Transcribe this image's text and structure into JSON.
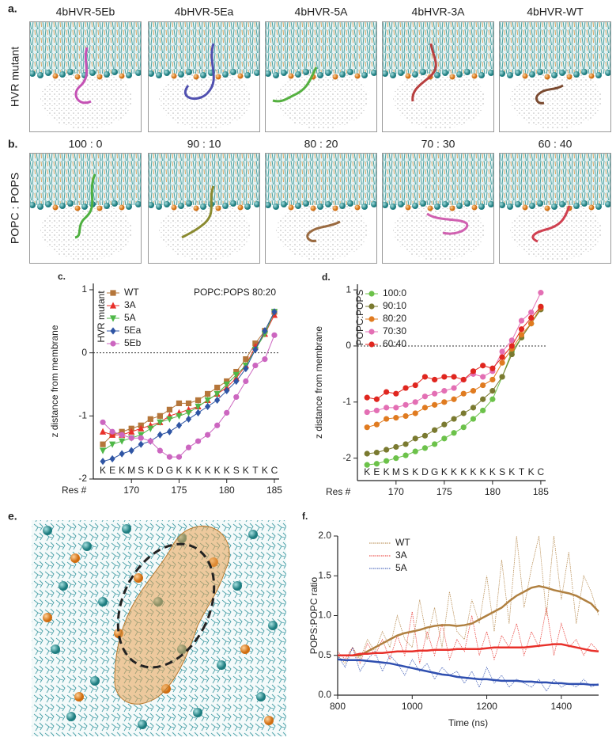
{
  "figure": {
    "panel_a": "a.",
    "panel_b": "b.",
    "panel_e": "e.",
    "row_a": "HVR mutant",
    "row_b": "POPC : POPS",
    "columns_a": [
      "4bHVR-5Eb",
      "4bHVR-5Ea",
      "4bHVR-5A",
      "4bHVR-3A",
      "4bHVR-WT"
    ],
    "columns_b": [
      "100 : 0",
      "90 : 10",
      "80 : 20",
      "70 : 30",
      "60 : 40"
    ]
  },
  "chart_data": [
    {
      "type": "line",
      "panel_label": "c.",
      "y_label": "z distance from membrane",
      "x_label": "Res #",
      "legend_title": "HVR mutant",
      "annotation": "POPC:POPS 80:20",
      "x": [
        167,
        168,
        169,
        170,
        171,
        172,
        173,
        174,
        175,
        176,
        177,
        178,
        179,
        180,
        181,
        182,
        183,
        184,
        185
      ],
      "residues": [
        "K",
        "E",
        "K",
        "M",
        "S",
        "K",
        "D",
        "G",
        "K",
        "K",
        "K",
        "K",
        "K",
        "K",
        "S",
        "K",
        "T",
        "K",
        "C"
      ],
      "xlim": [
        166,
        185.5
      ],
      "xticks": [
        170,
        175,
        180,
        185
      ],
      "ylim": [
        -2,
        1.1
      ],
      "yticks": [
        1,
        0,
        -1,
        -2
      ],
      "zero_line": true,
      "series": [
        {
          "name": "WT",
          "color": "#b5763a",
          "marker": "square",
          "values": [
            -1.45,
            -1.3,
            -1.25,
            -1.2,
            -1.15,
            -1.05,
            -1.0,
            -0.9,
            -0.8,
            -0.8,
            -0.75,
            -0.65,
            -0.55,
            -0.45,
            -0.3,
            -0.1,
            0.15,
            0.35,
            0.65
          ]
        },
        {
          "name": "3A",
          "color": "#e8302a",
          "marker": "triangle",
          "values": [
            -1.25,
            -1.3,
            -1.3,
            -1.25,
            -1.2,
            -1.15,
            -1.1,
            -1.0,
            -0.95,
            -0.9,
            -0.85,
            -0.75,
            -0.65,
            -0.55,
            -0.4,
            -0.2,
            0.1,
            0.3,
            0.6
          ]
        },
        {
          "name": "5A",
          "color": "#4fb848",
          "marker": "triangle-down",
          "values": [
            -1.55,
            -1.45,
            -1.4,
            -1.35,
            -1.3,
            -1.2,
            -1.1,
            -1.05,
            -1.0,
            -0.95,
            -0.85,
            -0.75,
            -0.65,
            -0.5,
            -0.35,
            -0.2,
            0.05,
            0.3,
            0.65
          ]
        },
        {
          "name": "5Ea",
          "color": "#2f55a4",
          "marker": "diamond",
          "values": [
            -1.72,
            -1.68,
            -1.6,
            -1.55,
            -1.45,
            -1.4,
            -1.3,
            -1.25,
            -1.15,
            -1.05,
            -0.95,
            -0.85,
            -0.75,
            -0.6,
            -0.45,
            -0.25,
            0.05,
            0.35,
            0.65
          ]
        },
        {
          "name": "5Eb",
          "color": "#cc66c0",
          "marker": "circle",
          "values": [
            -1.1,
            -1.25,
            -1.3,
            -1.35,
            -1.35,
            -1.4,
            -1.55,
            -1.65,
            -1.65,
            -1.5,
            -1.4,
            -1.3,
            -1.15,
            -0.95,
            -0.7,
            -0.45,
            -0.2,
            -0.1,
            0.28
          ]
        }
      ]
    },
    {
      "type": "line",
      "panel_label": "d.",
      "y_label": "z distance from membrane",
      "x_label": "Res #",
      "legend_title": "POPC:POPS",
      "x": [
        167,
        168,
        169,
        170,
        171,
        172,
        173,
        174,
        175,
        176,
        177,
        178,
        179,
        180,
        181,
        182,
        183,
        184,
        185
      ],
      "residues": [
        "K",
        "E",
        "K",
        "M",
        "S",
        "K",
        "D",
        "G",
        "K",
        "K",
        "K",
        "K",
        "K",
        "K",
        "S",
        "K",
        "T",
        "K",
        "C"
      ],
      "xlim": [
        166,
        185.5
      ],
      "xticks": [
        170,
        175,
        180,
        185
      ],
      "ylim": [
        -2.4,
        1.1
      ],
      "yticks": [
        1,
        0,
        -1,
        -2
      ],
      "zero_line": true,
      "series": [
        {
          "name": "100:0",
          "color": "#6cc24a",
          "marker": "circle",
          "values": [
            -2.12,
            -2.1,
            -2.05,
            -2.0,
            -1.95,
            -1.88,
            -1.82,
            -1.75,
            -1.65,
            -1.55,
            -1.45,
            -1.3,
            -1.15,
            -0.95,
            -0.55,
            -0.1,
            0.15,
            0.4,
            0.7
          ]
        },
        {
          "name": "90:10",
          "color": "#7a7a30",
          "marker": "circle",
          "values": [
            -1.92,
            -1.9,
            -1.85,
            -1.8,
            -1.75,
            -1.65,
            -1.6,
            -1.5,
            -1.4,
            -1.3,
            -1.2,
            -1.1,
            -0.95,
            -0.8,
            -0.55,
            -0.15,
            0.15,
            0.4,
            0.65
          ]
        },
        {
          "name": "80:20",
          "color": "#e07b20",
          "marker": "circle",
          "values": [
            -1.45,
            -1.4,
            -1.3,
            -1.28,
            -1.25,
            -1.2,
            -1.1,
            -1.05,
            -1.0,
            -0.95,
            -0.85,
            -0.8,
            -0.7,
            -0.6,
            -0.3,
            -0.05,
            0.2,
            0.4,
            0.68
          ]
        },
        {
          "name": "70:30",
          "color": "#e36fb4",
          "marker": "circle",
          "values": [
            -1.18,
            -1.15,
            -1.1,
            -1.1,
            -1.05,
            -1.0,
            -0.9,
            -0.85,
            -0.8,
            -0.75,
            -0.6,
            -0.5,
            -0.55,
            -0.45,
            -0.1,
            0.1,
            0.45,
            0.6,
            0.95
          ]
        },
        {
          "name": "60:40",
          "color": "#e0261f",
          "marker": "circle",
          "values": [
            -0.92,
            -0.95,
            -0.82,
            -0.85,
            -0.75,
            -0.7,
            -0.55,
            -0.6,
            -0.55,
            -0.55,
            -0.6,
            -0.45,
            -0.35,
            -0.4,
            -0.2,
            0.0,
            0.3,
            0.5,
            0.7
          ]
        }
      ]
    },
    {
      "type": "timeseries",
      "panel_label": "f.",
      "y_label": "POPS:POPC ratio",
      "x_label": "Time (ns)",
      "x": [
        800,
        820,
        840,
        860,
        880,
        900,
        920,
        940,
        960,
        980,
        1000,
        1020,
        1040,
        1060,
        1080,
        1100,
        1120,
        1140,
        1160,
        1180,
        1200,
        1220,
        1240,
        1260,
        1280,
        1300,
        1320,
        1340,
        1360,
        1380,
        1400,
        1420,
        1440,
        1460,
        1480,
        1500
      ],
      "xlim": [
        800,
        1500
      ],
      "xticks": [
        800,
        1000,
        1200,
        1400
      ],
      "ylim": [
        0,
        2
      ],
      "yticks": [
        {
          "value": 0,
          "label": "0.0"
        },
        0.5,
        {
          "value": 1,
          "label": "1.0"
        },
        1.5,
        {
          "value": 2,
          "label": "2.0"
        }
      ],
      "series": [
        {
          "name": "WT",
          "color": "#b08040",
          "values": [
            0.5,
            0.4,
            0.6,
            0.45,
            0.7,
            0.55,
            0.8,
            0.6,
            1.0,
            0.7,
            0.6,
            1.2,
            0.7,
            1.1,
            0.6,
            1.3,
            0.8,
            0.7,
            1.2,
            0.9,
            1.5,
            0.8,
            1.7,
            0.9,
            2.0,
            1.1,
            1.6,
            2.0,
            1.0,
            2.0,
            1.2,
            1.8,
            0.9,
            1.5,
            1.3,
            1.0
          ],
          "smooth": [
            0.5,
            0.5,
            0.5,
            0.5,
            0.55,
            0.6,
            0.65,
            0.7,
            0.75,
            0.78,
            0.8,
            0.82,
            0.85,
            0.87,
            0.88,
            0.88,
            0.87,
            0.88,
            0.9,
            0.95,
            1.0,
            1.05,
            1.1,
            1.18,
            1.25,
            1.3,
            1.35,
            1.37,
            1.35,
            1.32,
            1.3,
            1.28,
            1.25,
            1.2,
            1.15,
            1.05
          ]
        },
        {
          "name": "3A",
          "color": "#e8302a",
          "values": [
            0.55,
            0.45,
            0.6,
            0.4,
            0.65,
            0.5,
            0.7,
            0.45,
            0.75,
            0.5,
            1.05,
            0.4,
            0.8,
            0.5,
            0.9,
            0.45,
            0.7,
            0.55,
            1.0,
            0.5,
            0.8,
            0.45,
            0.75,
            0.6,
            0.9,
            0.5,
            0.8,
            0.6,
            1.1,
            0.5,
            0.9,
            0.6,
            0.7,
            0.5,
            0.65,
            0.55
          ],
          "smooth": [
            0.5,
            0.5,
            0.5,
            0.52,
            0.52,
            0.53,
            0.53,
            0.54,
            0.55,
            0.55,
            0.55,
            0.56,
            0.56,
            0.57,
            0.57,
            0.57,
            0.58,
            0.58,
            0.58,
            0.58,
            0.59,
            0.6,
            0.6,
            0.6,
            0.6,
            0.6,
            0.61,
            0.62,
            0.63,
            0.64,
            0.64,
            0.62,
            0.6,
            0.58,
            0.56,
            0.55
          ]
        },
        {
          "name": "5A",
          "color": "#2f4fb0",
          "values": [
            0.5,
            0.35,
            0.6,
            0.3,
            0.45,
            0.55,
            0.3,
            0.5,
            0.4,
            0.25,
            0.45,
            0.3,
            0.4,
            0.2,
            0.35,
            0.25,
            0.3,
            0.15,
            0.3,
            0.1,
            0.35,
            0.15,
            0.25,
            0.1,
            0.2,
            0.15,
            0.1,
            0.2,
            0.05,
            0.2,
            0.1,
            0.15,
            0.1,
            0.2,
            0.1,
            0.15
          ],
          "smooth": [
            0.45,
            0.44,
            0.44,
            0.44,
            0.43,
            0.42,
            0.41,
            0.4,
            0.38,
            0.36,
            0.34,
            0.32,
            0.3,
            0.28,
            0.26,
            0.25,
            0.23,
            0.22,
            0.21,
            0.2,
            0.2,
            0.19,
            0.18,
            0.18,
            0.18,
            0.17,
            0.17,
            0.16,
            0.16,
            0.15,
            0.15,
            0.14,
            0.14,
            0.14,
            0.13,
            0.13
          ]
        }
      ]
    }
  ]
}
